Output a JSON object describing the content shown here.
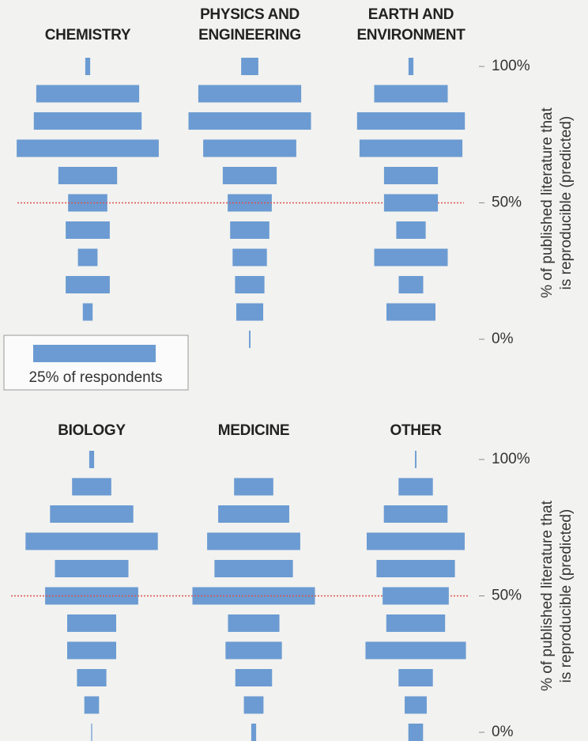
{
  "chart_data": [
    {
      "type": "bar",
      "orientation": "horizontal",
      "title": "CHEMISTRY",
      "color": "#6b9bd2",
      "y": [
        100,
        90,
        80,
        70,
        60,
        50,
        40,
        30,
        20,
        10,
        0
      ],
      "values": [
        1,
        21,
        22,
        29,
        12,
        8,
        9,
        4,
        9,
        2,
        0
      ],
      "legend": {
        "value": 25,
        "label": "25% of respondents"
      }
    },
    {
      "type": "bar",
      "orientation": "horizontal",
      "title": "PHYSICS AND ENGINEERING",
      "color": "#6b9bd2",
      "y": [
        100,
        90,
        80,
        70,
        60,
        50,
        40,
        30,
        20,
        10,
        0
      ],
      "values": [
        3.5,
        21,
        25,
        19,
        11,
        9,
        8,
        7,
        6,
        5.5,
        0.3
      ]
    },
    {
      "type": "bar",
      "orientation": "horizontal",
      "title": "EARTH AND ENVIRONMENT",
      "color": "#6b9bd2",
      "y": [
        100,
        90,
        80,
        70,
        60,
        50,
        40,
        30,
        20,
        10,
        0
      ],
      "values": [
        1,
        15,
        22,
        21,
        11,
        11,
        6,
        15,
        5,
        10,
        0
      ],
      "ylim": [
        0,
        100
      ],
      "yticks": [
        {
          "value": 100,
          "label": "100%"
        },
        {
          "value": 50,
          "label": "50%"
        },
        {
          "value": 0,
          "label": "0%"
        }
      ],
      "y_label": [
        "% of published literature that",
        "is reproducible (predicted)"
      ],
      "ref_line": 50,
      "ref_color": "#d9534f"
    },
    {
      "type": "bar",
      "orientation": "horizontal",
      "title": "BIOLOGY",
      "color": "#6b9bd2",
      "y": [
        100,
        90,
        80,
        70,
        60,
        50,
        40,
        30,
        20,
        10,
        0
      ],
      "values": [
        1,
        8,
        17,
        27,
        15,
        19,
        10,
        10,
        6,
        3,
        0.2
      ]
    },
    {
      "type": "bar",
      "orientation": "horizontal",
      "title": "MEDICINE",
      "color": "#6b9bd2",
      "y": [
        100,
        90,
        80,
        70,
        60,
        50,
        40,
        30,
        20,
        10,
        0
      ],
      "values": [
        0,
        8,
        14.5,
        19,
        16,
        25,
        10.5,
        11.5,
        7.5,
        4,
        1
      ]
    },
    {
      "type": "bar",
      "orientation": "horizontal",
      "title": "OTHER",
      "color": "#6b9bd2",
      "y": [
        100,
        90,
        80,
        70,
        60,
        50,
        40,
        30,
        20,
        10,
        0
      ],
      "values": [
        0.3,
        7,
        13,
        20,
        16,
        13.5,
        12,
        20.5,
        7,
        4.5,
        3
      ],
      "ylim": [
        0,
        100
      ],
      "yticks": [
        {
          "value": 100,
          "label": "100%"
        },
        {
          "value": 50,
          "label": "50%"
        },
        {
          "value": 0,
          "label": "0%"
        }
      ],
      "y_label": [
        "% of published literature that",
        "is reproducible (predicted)"
      ],
      "ref_line": 50,
      "ref_color": "#d9534f"
    }
  ]
}
